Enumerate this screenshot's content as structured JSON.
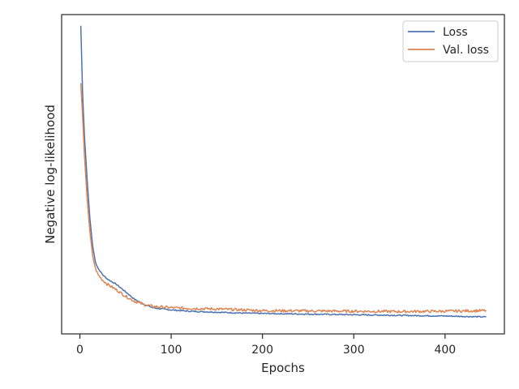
{
  "chart_data": {
    "type": "line",
    "title": "",
    "xlabel": "Epochs",
    "ylabel": "Negative log-likelihood",
    "xlim": [
      -20,
      465
    ],
    "ylim": [
      0,
      100
    ],
    "y_tick_labels_shown": false,
    "x_ticks": [
      0,
      100,
      200,
      300,
      400
    ],
    "x_tick_labels": [
      "0",
      "100",
      "200",
      "300",
      "400"
    ],
    "grid": false,
    "legend_position": "top-right",
    "series": [
      {
        "name": "Loss",
        "color": "#4c72b0",
        "x": [
          1,
          3,
          5,
          8,
          11,
          14,
          17,
          20,
          25,
          30,
          40,
          50,
          60,
          70,
          80,
          90,
          100,
          120,
          150,
          180,
          200,
          250,
          300,
          350,
          400,
          445
        ],
        "y": [
          96.5,
          75,
          62,
          48,
          36,
          27.5,
          22.5,
          20.5,
          18.5,
          17.2,
          15.5,
          13.2,
          10.8,
          9.3,
          8.2,
          7.8,
          7.5,
          7.1,
          6.8,
          6.5,
          6.4,
          6.2,
          6.0,
          5.8,
          5.6,
          5.3
        ]
      },
      {
        "name": "Val. loss",
        "color": "#dd8452",
        "x": [
          1,
          3,
          5,
          8,
          11,
          14,
          17,
          20,
          25,
          30,
          40,
          50,
          60,
          70,
          80,
          90,
          100,
          120,
          150,
          180,
          200,
          250,
          300,
          350,
          400,
          445
        ],
        "y": [
          78.5,
          68,
          56,
          42,
          32,
          24.5,
          20.5,
          18.5,
          16.8,
          15.6,
          13.8,
          11.8,
          10.2,
          9.2,
          8.6,
          8.4,
          8.2,
          8.0,
          7.8,
          7.5,
          7.3,
          7.2,
          7.1,
          7.0,
          7.1,
          7.3
        ]
      }
    ]
  }
}
